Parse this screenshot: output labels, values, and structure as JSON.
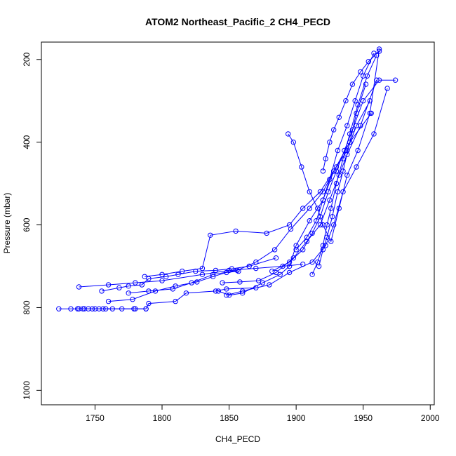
{
  "chart_data": {
    "type": "scatter",
    "title": "ATOM2 Northeast_Pacific_2 CH4_PECD",
    "xlabel": "CH4_PECD",
    "ylabel": "Pressure (mbar)",
    "xlim": [
      1710,
      2003
    ],
    "ylim": [
      1035,
      158
    ],
    "y_reversed": true,
    "xticks": [
      1750,
      1800,
      1850,
      1900,
      1950,
      2000
    ],
    "yticks": [
      200,
      400,
      600,
      800,
      1000
    ],
    "grid": false,
    "color": "#0000ff",
    "marker": "open-circle",
    "connected": true,
    "series": [
      {
        "x": [
          1723,
          1732,
          1738,
          1741,
          1745,
          1750,
          1756,
          1763,
          1770,
          1779,
          1788
        ],
        "y": [
          803,
          803,
          803,
          803,
          803,
          803,
          803,
          803,
          803,
          803,
          803
        ]
      },
      {
        "x": [
          1737,
          1742,
          1748,
          1753,
          1758,
          1780,
          1788,
          1790,
          1810,
          1818,
          1840,
          1848,
          1870
        ],
        "y": [
          803,
          803,
          803,
          803,
          803,
          803,
          803,
          790,
          785,
          765,
          760,
          755,
          752
        ]
      },
      {
        "x": [
          1738,
          1760,
          1780,
          1800,
          1830,
          1850,
          1870,
          1890,
          1905
        ],
        "y": [
          750,
          745,
          740,
          735,
          720,
          710,
          705,
          700,
          695
        ]
      },
      {
        "x": [
          1755,
          1768,
          1775,
          1785,
          1790,
          1803,
          1812,
          1825,
          1840,
          1852,
          1865,
          1885
        ],
        "y": [
          760,
          752,
          748,
          745,
          730,
          725,
          720,
          712,
          710,
          706,
          700,
          680
        ]
      },
      {
        "x": [
          1760,
          1778,
          1795,
          1810,
          1826,
          1838,
          1848,
          1857
        ],
        "y": [
          785,
          780,
          760,
          748,
          738,
          725,
          715,
          712
        ]
      },
      {
        "x": [
          1775,
          1790,
          1808,
          1822,
          1838,
          1856,
          1870,
          1884,
          1896,
          1910,
          1920,
          1928
        ],
        "y": [
          765,
          760,
          755,
          740,
          720,
          710,
          690,
          660,
          610,
          560,
          520,
          470
        ]
      },
      {
        "x": [
          1787,
          1800,
          1815,
          1830,
          1836,
          1855,
          1878,
          1895,
          1905,
          1918,
          1930,
          1938,
          1945,
          1955
        ],
        "y": [
          725,
          720,
          712,
          705,
          625,
          615,
          620,
          600,
          560,
          520,
          460,
          420,
          360,
          300
        ]
      },
      {
        "x": [
          1842,
          1850,
          1860,
          1875,
          1888,
          1895,
          1900,
          1910,
          1920,
          1928,
          1940,
          1956
        ],
        "y": [
          760,
          770,
          765,
          740,
          720,
          700,
          650,
          590,
          540,
          470,
          400,
          330
        ]
      },
      {
        "x": [
          1845,
          1858,
          1872,
          1885,
          1898,
          1908,
          1918,
          1925,
          1932,
          1938,
          1948,
          1960
        ],
        "y": [
          740,
          738,
          735,
          715,
          680,
          640,
          600,
          540,
          480,
          430,
          360,
          250
        ]
      },
      {
        "x": [
          1848,
          1860,
          1880,
          1895,
          1912,
          1922,
          1928,
          1935,
          1945,
          1958,
          1968
        ],
        "y": [
          770,
          760,
          745,
          715,
          690,
          650,
          600,
          520,
          460,
          380,
          270
        ]
      },
      {
        "x": [
          1882,
          1895,
          1905,
          1912,
          1918,
          1924,
          1930,
          1936,
          1942,
          1950,
          1962,
          1974
        ],
        "y": [
          712,
          690,
          660,
          620,
          580,
          520,
          470,
          420,
          370,
          300,
          250,
          250
        ]
      },
      {
        "x": [
          1894,
          1898,
          1904,
          1910,
          1916,
          1920,
          1926,
          1932,
          1938,
          1946,
          1955,
          1962
        ],
        "y": [
          380,
          400,
          460,
          520,
          560,
          600,
          640,
          560,
          480,
          420,
          330,
          175
        ]
      },
      {
        "x": [
          1900,
          1908,
          1915,
          1920,
          1925,
          1931,
          1938,
          1944,
          1950,
          1958
        ],
        "y": [
          660,
          630,
          590,
          540,
          490,
          420,
          360,
          300,
          240,
          185
        ]
      },
      {
        "x": [
          1912,
          1916,
          1920,
          1923,
          1926,
          1930,
          1935,
          1940,
          1946,
          1953,
          1960
        ],
        "y": [
          720,
          690,
          650,
          600,
          560,
          500,
          440,
          380,
          310,
          240,
          190
        ]
      },
      {
        "x": [
          1917,
          1920,
          1923,
          1927,
          1931,
          1935,
          1940,
          1945,
          1952
        ],
        "y": [
          700,
          660,
          630,
          580,
          520,
          470,
          400,
          330,
          260
        ]
      },
      {
        "x": [
          1920,
          1922,
          1925,
          1928,
          1932,
          1937,
          1942,
          1948,
          1954,
          1962
        ],
        "y": [
          470,
          440,
          400,
          370,
          340,
          300,
          260,
          230,
          205,
          180
        ]
      }
    ]
  }
}
